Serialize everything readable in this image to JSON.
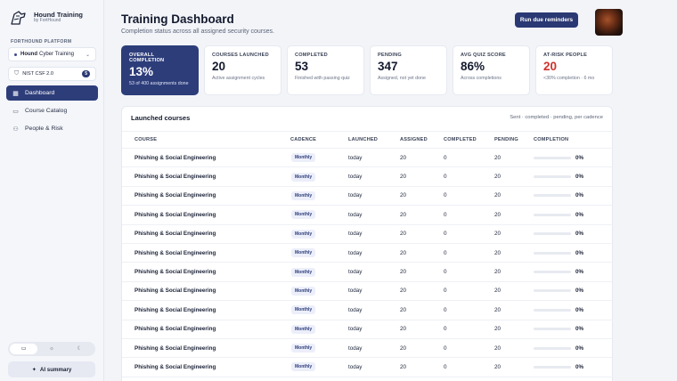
{
  "app": {
    "name": "Hound Training",
    "by": "by FortHound"
  },
  "sidebar": {
    "section_label": "FORTHOUND PLATFORM",
    "org_bold": "Hound",
    "org_rest": "Cyber Training",
    "framework": "NIST CSF 2.0",
    "framework_count": "5",
    "nav": [
      {
        "label": "Dashboard",
        "icon": "grid-icon",
        "active": true
      },
      {
        "label": "Course Catalog",
        "icon": "book-icon",
        "active": false
      },
      {
        "label": "People & Risk",
        "icon": "people-icon",
        "active": false
      }
    ],
    "theme_modes": [
      "monitor-icon",
      "sun-icon",
      "moon-icon"
    ],
    "ai_summary": "AI summary"
  },
  "header": {
    "title": "Training Dashboard",
    "subtitle": "Completion status across all assigned security courses.",
    "run_button": "Run due reminders"
  },
  "cards": [
    {
      "label": "OVERALL COMPLETION",
      "value": "13%",
      "note": "53 of 400 assignments done",
      "kind": "primary"
    },
    {
      "label": "COURSES LAUNCHED",
      "value": "20",
      "note": "Active assignment cycles",
      "kind": "normal"
    },
    {
      "label": "COMPLETED",
      "value": "53",
      "note": "Finished with passing quiz",
      "kind": "normal"
    },
    {
      "label": "PENDING",
      "value": "347",
      "note": "Assigned, not yet done",
      "kind": "normal"
    },
    {
      "label": "AVG QUIZ SCORE",
      "value": "86%",
      "note": "Across completions",
      "kind": "normal"
    },
    {
      "label": "AT-RISK PEOPLE",
      "value": "20",
      "note": "<30% completion · 6 mo",
      "kind": "risk"
    }
  ],
  "courses_panel": {
    "title": "Launched courses",
    "hint": "Sent · completed · pending, per cadence",
    "columns": [
      "COURSE",
      "CADENCE",
      "LAUNCHED",
      "ASSIGNED",
      "COMPLETED",
      "PENDING",
      "COMPLETION"
    ],
    "rows": [
      {
        "course": "Phishing & Social Engineering",
        "cadence": "Monthly",
        "launched": "today",
        "assigned": "20",
        "completed": "0",
        "pending": "20",
        "completion": "0%",
        "completion_fraction": 0
      },
      {
        "course": "Phishing & Social Engineering",
        "cadence": "Monthly",
        "launched": "today",
        "assigned": "20",
        "completed": "0",
        "pending": "20",
        "completion": "0%",
        "completion_fraction": 0
      },
      {
        "course": "Phishing & Social Engineering",
        "cadence": "Monthly",
        "launched": "today",
        "assigned": "20",
        "completed": "0",
        "pending": "20",
        "completion": "0%",
        "completion_fraction": 0
      },
      {
        "course": "Phishing & Social Engineering",
        "cadence": "Monthly",
        "launched": "today",
        "assigned": "20",
        "completed": "0",
        "pending": "20",
        "completion": "0%",
        "completion_fraction": 0
      },
      {
        "course": "Phishing & Social Engineering",
        "cadence": "Monthly",
        "launched": "today",
        "assigned": "20",
        "completed": "0",
        "pending": "20",
        "completion": "0%",
        "completion_fraction": 0
      },
      {
        "course": "Phishing & Social Engineering",
        "cadence": "Monthly",
        "launched": "today",
        "assigned": "20",
        "completed": "0",
        "pending": "20",
        "completion": "0%",
        "completion_fraction": 0
      },
      {
        "course": "Phishing & Social Engineering",
        "cadence": "Monthly",
        "launched": "today",
        "assigned": "20",
        "completed": "0",
        "pending": "20",
        "completion": "0%",
        "completion_fraction": 0
      },
      {
        "course": "Phishing & Social Engineering",
        "cadence": "Monthly",
        "launched": "today",
        "assigned": "20",
        "completed": "0",
        "pending": "20",
        "completion": "0%",
        "completion_fraction": 0
      },
      {
        "course": "Phishing & Social Engineering",
        "cadence": "Monthly",
        "launched": "today",
        "assigned": "20",
        "completed": "0",
        "pending": "20",
        "completion": "0%",
        "completion_fraction": 0
      },
      {
        "course": "Phishing & Social Engineering",
        "cadence": "Monthly",
        "launched": "today",
        "assigned": "20",
        "completed": "0",
        "pending": "20",
        "completion": "0%",
        "completion_fraction": 0
      },
      {
        "course": "Phishing & Social Engineering",
        "cadence": "Monthly",
        "launched": "today",
        "assigned": "20",
        "completed": "0",
        "pending": "20",
        "completion": "0%",
        "completion_fraction": 0
      },
      {
        "course": "Phishing & Social Engineering",
        "cadence": "Monthly",
        "launched": "today",
        "assigned": "20",
        "completed": "0",
        "pending": "20",
        "completion": "0%",
        "completion_fraction": 0
      }
    ]
  },
  "colors": {
    "accent": "#2d3d7a",
    "risk": "#d2302b"
  }
}
